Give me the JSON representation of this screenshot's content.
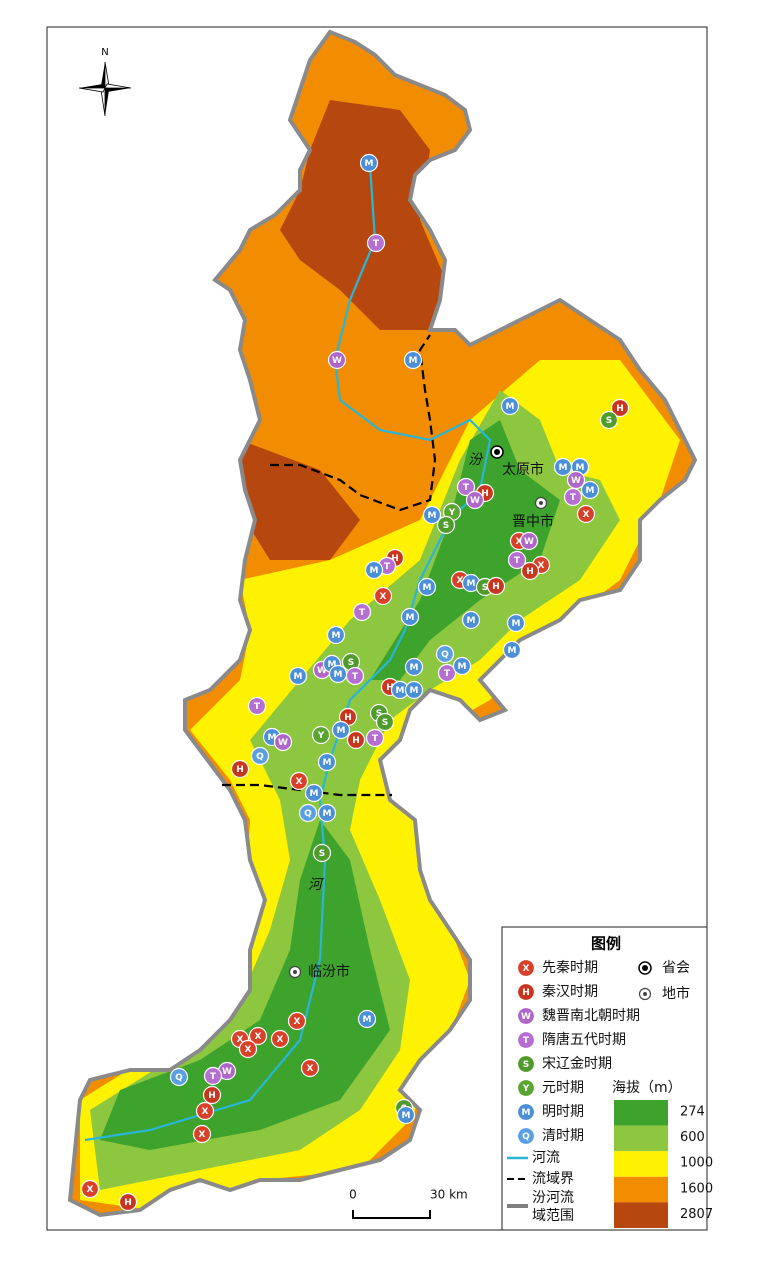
{
  "north": "N",
  "river_labels": [
    "汾",
    "河"
  ],
  "cities": [
    "太原市",
    "晋中市",
    "临汾市"
  ],
  "legend": {
    "title": "图例",
    "periods": [
      {
        "symbol": "X",
        "name": "先秦时期",
        "color": "#d8402a"
      },
      {
        "symbol": "H",
        "name": "秦汉时期",
        "color": "#c9361f"
      },
      {
        "symbol": "W",
        "name": "魏晋南北朝时期",
        "color": "#b065c8"
      },
      {
        "symbol": "T",
        "name": "隋唐五代时期",
        "color": "#b46fd0"
      },
      {
        "symbol": "S",
        "name": "宋辽金时期",
        "color": "#4f9b2c"
      },
      {
        "symbol": "Y",
        "name": "元时期",
        "color": "#5aa532"
      },
      {
        "symbol": "M",
        "name": "明时期",
        "color": "#4a8fd8"
      },
      {
        "symbol": "Q",
        "name": "清时期",
        "color": "#5aa0e0"
      }
    ],
    "city_types": [
      "省会",
      "地市"
    ],
    "lines": [
      {
        "name": "河流",
        "color": "#29b6d8"
      },
      {
        "name": "流域界",
        "color": "#000000"
      },
      {
        "name": [
          "汾河流",
          "域范围"
        ],
        "color": "#808080"
      }
    ],
    "elevation": {
      "title": "海拔（m）",
      "ticks": [
        274,
        600,
        1000,
        1600,
        2807
      ],
      "colors": [
        "#3da32c",
        "#8dc63f",
        "#fff200",
        "#f28c00",
        "#b5470f"
      ]
    }
  },
  "scale": {
    "ticks": [
      0,
      {
        "value": 30,
        "label": "30 km"
      }
    ]
  }
}
